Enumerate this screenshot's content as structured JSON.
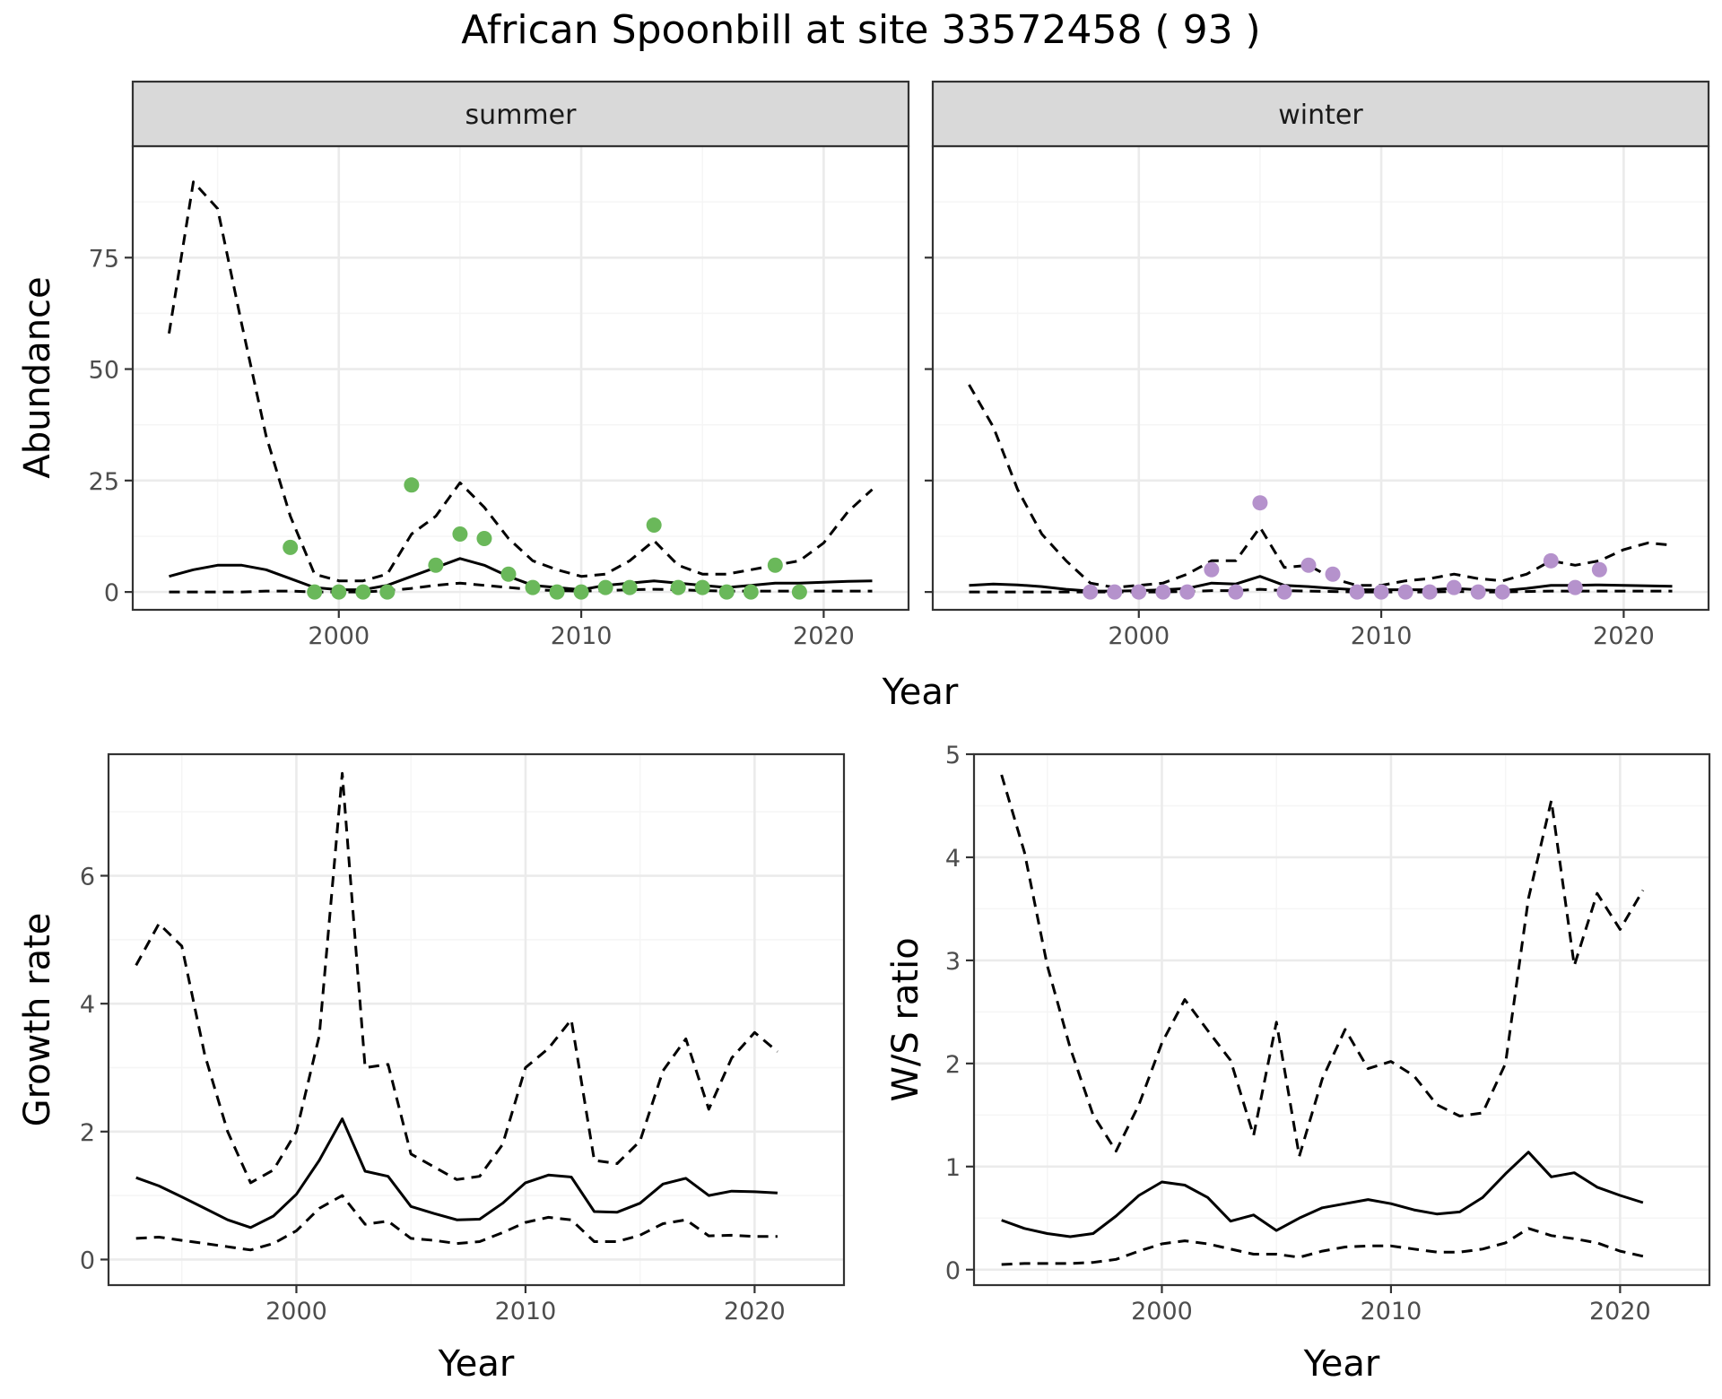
{
  "title": "African Spoonbill at site 33572458 ( 93 )",
  "colors": {
    "summer": "#6ab85a",
    "winter": "#b592cc",
    "line": "#000000",
    "grid_major": "#ebebeb",
    "grid_minor": "#f5f5f5",
    "strip_bg": "#d9d9d9",
    "panel_border": "#333333"
  },
  "chart_data": [
    {
      "id": "abundance",
      "type": "line",
      "facets": [
        "summer",
        "winter"
      ],
      "xlabel": "Year",
      "ylabel": "Abundance",
      "xlim": [
        1991.5,
        2023.5
      ],
      "ylim": [
        -4,
        100
      ],
      "xticks": [
        2000,
        2010,
        2020
      ],
      "yticks": [
        0,
        25,
        50,
        75
      ],
      "grid": true,
      "panels": [
        {
          "facet": "summer",
          "x": [
            1993,
            1994,
            1995,
            1996,
            1997,
            1998,
            1999,
            2000,
            2001,
            2002,
            2003,
            2004,
            2005,
            2006,
            2007,
            2008,
            2009,
            2010,
            2011,
            2012,
            2013,
            2014,
            2015,
            2016,
            2017,
            2018,
            2019,
            2020,
            2021,
            2022
          ],
          "series": [
            {
              "role": "mean",
              "style": "solid",
              "values": [
                3.5,
                5,
                6,
                6,
                5,
                3,
                1,
                0.5,
                0.5,
                1.5,
                3.5,
                5.5,
                7.5,
                6,
                3.5,
                1.5,
                1,
                0.5,
                1.5,
                2,
                2.5,
                2,
                1.5,
                1,
                1.5,
                2,
                2,
                2.2,
                2.4,
                2.5
              ]
            },
            {
              "role": "upper",
              "style": "dashed",
              "values": [
                58,
                92,
                86,
                60,
                35,
                17,
                4,
                2.5,
                2.5,
                4,
                13,
                17,
                24.5,
                19,
                12,
                7,
                5,
                3.5,
                4,
                7,
                11.5,
                6,
                4,
                4,
                5,
                6,
                7,
                11,
                18,
                23
              ]
            },
            {
              "role": "lower",
              "style": "dashed",
              "values": [
                0,
                0,
                0,
                0,
                0.2,
                0.2,
                0,
                0,
                0,
                0.3,
                0.8,
                1.5,
                2,
                1.5,
                1,
                0.5,
                0.3,
                0.2,
                0.3,
                0.5,
                0.6,
                0.5,
                0.3,
                0.2,
                0.2,
                0.2,
                0.2,
                0.2,
                0.2,
                0.2
              ]
            }
          ],
          "points": {
            "x": [
              1998,
              1999,
              2000,
              2001,
              2002,
              2003,
              2004,
              2005,
              2006,
              2007,
              2008,
              2009,
              2010,
              2011,
              2012,
              2013,
              2014,
              2015,
              2016,
              2017,
              2018,
              2019
            ],
            "y": [
              10,
              0,
              0,
              0,
              0,
              24,
              6,
              13,
              12,
              4,
              1,
              0,
              0,
              1,
              1,
              15,
              1,
              1,
              0,
              0,
              6,
              0
            ]
          }
        },
        {
          "facet": "winter",
          "x": [
            1993,
            1994,
            1995,
            1996,
            1997,
            1998,
            1999,
            2000,
            2001,
            2002,
            2003,
            2004,
            2005,
            2006,
            2007,
            2008,
            2009,
            2010,
            2011,
            2012,
            2013,
            2014,
            2015,
            2016,
            2017,
            2018,
            2019,
            2020,
            2021,
            2022
          ],
          "series": [
            {
              "role": "mean",
              "style": "solid",
              "values": [
                1.5,
                1.8,
                1.6,
                1.2,
                0.6,
                0.2,
                0.2,
                0.3,
                0.5,
                0.8,
                2,
                1.8,
                3.5,
                1.5,
                1.2,
                0.8,
                0.5,
                0.5,
                0.5,
                0.5,
                0.8,
                0.5,
                0.3,
                0.8,
                1.5,
                1.5,
                1.6,
                1.5,
                1.4,
                1.3
              ]
            },
            {
              "role": "upper",
              "style": "dashed",
              "values": [
                46.5,
                37,
                23,
                13,
                7,
                2,
                1,
                1.5,
                2,
                4,
                7,
                7,
                14.5,
                5.5,
                6,
                3,
                1.5,
                1.5,
                2.5,
                3,
                4,
                3,
                2.5,
                4,
                7,
                6,
                7,
                9.5,
                11,
                10.5
              ]
            },
            {
              "role": "lower",
              "style": "dashed",
              "values": [
                0,
                0,
                0,
                0,
                0,
                0,
                0,
                0,
                0,
                0.1,
                0.3,
                0.3,
                0.6,
                0.3,
                0.2,
                0.1,
                0,
                0,
                0,
                0,
                0.1,
                0,
                0,
                0.1,
                0.2,
                0.2,
                0.2,
                0.2,
                0.2,
                0.2
              ]
            }
          ],
          "points": {
            "x": [
              1998,
              1999,
              2000,
              2001,
              2002,
              2003,
              2004,
              2005,
              2006,
              2007,
              2008,
              2009,
              2010,
              2011,
              2012,
              2013,
              2014,
              2015,
              2017,
              2018,
              2019
            ],
            "y": [
              0,
              0,
              0,
              0,
              0,
              5,
              0,
              20,
              0,
              6,
              4,
              0,
              0,
              0,
              0,
              1,
              0,
              0,
              7,
              1,
              5
            ]
          }
        }
      ]
    },
    {
      "id": "growth",
      "type": "line",
      "xlabel": "Year",
      "ylabel": "Growth rate",
      "xlim": [
        1991.8,
        2023.9
      ],
      "ylim": [
        -0.4,
        7.9
      ],
      "xticks": [
        2000,
        2010,
        2020
      ],
      "yticks": [
        0,
        2,
        4,
        6
      ],
      "grid": true,
      "x": [
        1993,
        1994,
        1995,
        1996,
        1997,
        1998,
        1999,
        2000,
        2001,
        2002,
        2003,
        2004,
        2005,
        2006,
        2007,
        2008,
        2009,
        2010,
        2011,
        2012,
        2013,
        2014,
        2015,
        2016,
        2017,
        2018,
        2019,
        2020,
        2021
      ],
      "series": [
        {
          "role": "mean",
          "style": "solid",
          "values": [
            1.28,
            1.15,
            0.98,
            0.8,
            0.62,
            0.5,
            0.68,
            1.02,
            1.55,
            2.2,
            1.38,
            1.3,
            0.83,
            0.72,
            0.62,
            0.63,
            0.88,
            1.2,
            1.32,
            1.29,
            0.75,
            0.74,
            0.88,
            1.18,
            1.27,
            1.0,
            1.07,
            1.06,
            1.04
          ]
        },
        {
          "role": "upper",
          "style": "dashed",
          "values": [
            4.6,
            5.25,
            4.9,
            3.2,
            2.0,
            1.2,
            1.4,
            2.0,
            3.5,
            7.6,
            3.0,
            3.05,
            1.65,
            1.45,
            1.25,
            1.3,
            1.8,
            3.0,
            3.3,
            3.75,
            1.55,
            1.5,
            1.85,
            2.95,
            3.45,
            2.35,
            3.15,
            3.55,
            3.25
          ]
        },
        {
          "role": "lower",
          "style": "dashed",
          "values": [
            0.33,
            0.35,
            0.3,
            0.25,
            0.2,
            0.15,
            0.25,
            0.45,
            0.8,
            1.0,
            0.55,
            0.6,
            0.33,
            0.3,
            0.25,
            0.28,
            0.42,
            0.58,
            0.66,
            0.62,
            0.28,
            0.28,
            0.38,
            0.56,
            0.62,
            0.37,
            0.38,
            0.36,
            0.36
          ]
        }
      ]
    },
    {
      "id": "ratio",
      "type": "line",
      "xlabel": "Year",
      "ylabel": "W/S ratio",
      "xlim": [
        1991.8,
        2023.9
      ],
      "ylim": [
        -0.15,
        5.0
      ],
      "xticks": [
        2000,
        2010,
        2020
      ],
      "yticks": [
        0,
        1,
        2,
        3,
        4,
        5
      ],
      "grid": true,
      "x": [
        1993,
        1994,
        1995,
        1996,
        1997,
        1998,
        1999,
        2000,
        2001,
        2002,
        2003,
        2004,
        2005,
        2006,
        2007,
        2008,
        2009,
        2010,
        2011,
        2012,
        2013,
        2014,
        2015,
        2016,
        2017,
        2018,
        2019,
        2020,
        2021
      ],
      "series": [
        {
          "role": "mean",
          "style": "solid",
          "values": [
            0.48,
            0.4,
            0.35,
            0.32,
            0.35,
            0.52,
            0.72,
            0.85,
            0.82,
            0.7,
            0.47,
            0.53,
            0.38,
            0.5,
            0.6,
            0.64,
            0.68,
            0.64,
            0.58,
            0.54,
            0.56,
            0.7,
            0.93,
            1.14,
            0.9,
            0.94,
            0.8,
            0.72,
            0.65
          ]
        },
        {
          "role": "upper",
          "style": "dashed",
          "values": [
            4.8,
            4.05,
            2.95,
            2.15,
            1.5,
            1.15,
            1.6,
            2.2,
            2.62,
            2.32,
            2.03,
            1.3,
            2.4,
            1.1,
            1.85,
            2.33,
            1.95,
            2.02,
            1.88,
            1.6,
            1.49,
            1.52,
            2.0,
            3.6,
            4.55,
            2.95,
            3.65,
            3.3,
            3.68
          ]
        },
        {
          "role": "lower",
          "style": "dashed",
          "values": [
            0.05,
            0.06,
            0.06,
            0.06,
            0.07,
            0.1,
            0.18,
            0.25,
            0.28,
            0.25,
            0.2,
            0.15,
            0.15,
            0.12,
            0.18,
            0.22,
            0.23,
            0.23,
            0.2,
            0.17,
            0.17,
            0.2,
            0.26,
            0.4,
            0.33,
            0.3,
            0.26,
            0.18,
            0.13
          ]
        }
      ]
    }
  ]
}
